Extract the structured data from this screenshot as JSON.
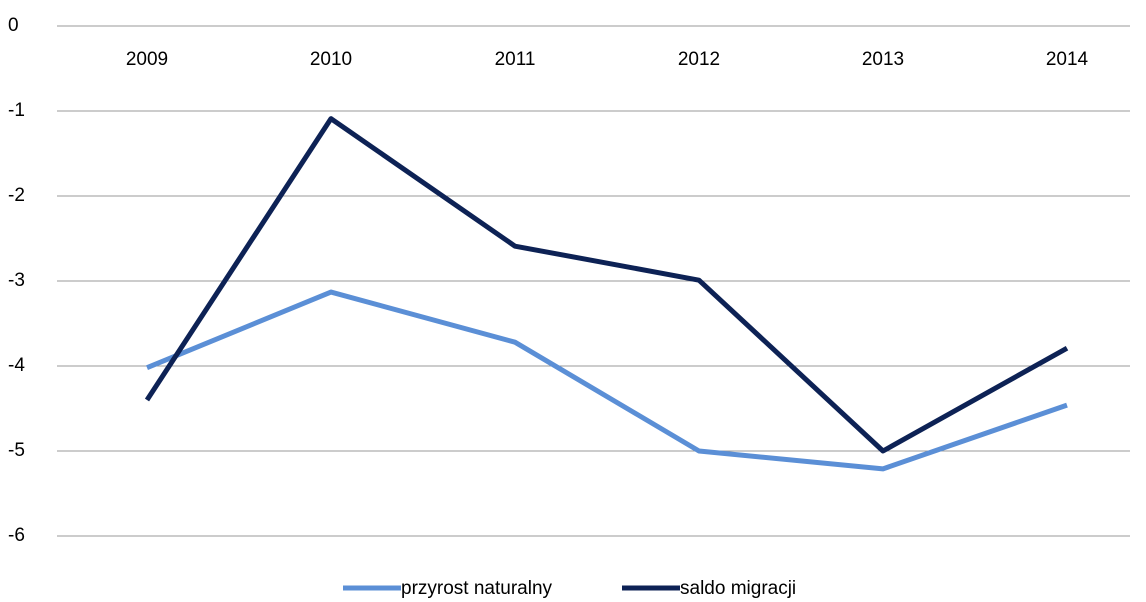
{
  "chart_data": {
    "type": "line",
    "categories": [
      "2009",
      "2010",
      "2011",
      "2012",
      "2013",
      "2014"
    ],
    "series": [
      {
        "name": "przyrost naturalny",
        "color": "#5b8fd6",
        "values": [
          -4.02,
          -3.13,
          -3.72,
          -5.0,
          -5.21,
          -4.46
        ]
      },
      {
        "name": "saldo migracji",
        "color": "#0d2255",
        "values": [
          -4.4,
          -1.09,
          -2.59,
          -2.99,
          -5.0,
          -3.79
        ]
      }
    ],
    "ylim": [
      -6,
      0
    ],
    "yticks": [
      0,
      -1,
      -2,
      -3,
      -4,
      -5,
      -6
    ],
    "grid": true,
    "legend": "bottom"
  }
}
